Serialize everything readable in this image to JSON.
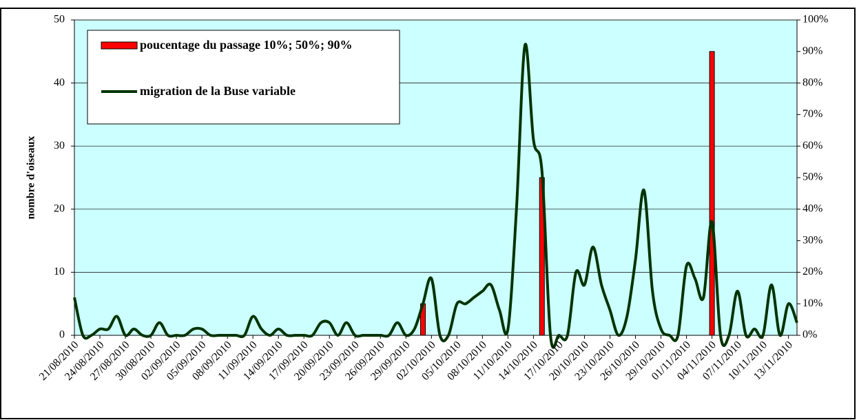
{
  "chart_data": {
    "type": "line-bar",
    "y_label": "nombre d'oiseaux",
    "categories": [
      "21/08/2010",
      null,
      null,
      "24/08/2010",
      null,
      null,
      "27/08/2010",
      null,
      null,
      "30/08/2010",
      null,
      null,
      "02/09/2010",
      null,
      null,
      "05/09/2010",
      null,
      null,
      "08/09/2010",
      null,
      null,
      "11/09/2010",
      null,
      null,
      "14/09/2010",
      null,
      null,
      "17/09/2010",
      null,
      null,
      "20/09/2010",
      null,
      null,
      "23/09/2010",
      null,
      null,
      "26/09/2010",
      null,
      null,
      "29/09/2010",
      null,
      null,
      "02/10/2010",
      null,
      null,
      "05/10/2010",
      null,
      null,
      "08/10/2010",
      null,
      null,
      "11/10/2010",
      null,
      null,
      "14/10/2010",
      null,
      null,
      "17/10/2010",
      null,
      null,
      "20/10/2010",
      null,
      null,
      "23/10/2010",
      null,
      null,
      "26/10/2010",
      null,
      null,
      "29/10/2010",
      null,
      null,
      "01/11/2010",
      null,
      null,
      "04/11/2010",
      null,
      null,
      "07/11/2010",
      null,
      null,
      "10/11/2010",
      null,
      null,
      "13/11/2010",
      null
    ],
    "series": [
      {
        "name": "poucentage du passage 10%; 50%; 90%",
        "kind": "bar",
        "axis": "y2",
        "color": "#ff0000",
        "values": [
          null,
          null,
          null,
          null,
          null,
          null,
          null,
          null,
          null,
          null,
          null,
          null,
          null,
          null,
          null,
          null,
          null,
          null,
          null,
          null,
          null,
          null,
          null,
          null,
          null,
          null,
          null,
          null,
          null,
          null,
          null,
          null,
          null,
          null,
          null,
          null,
          null,
          null,
          null,
          null,
          null,
          10,
          null,
          null,
          null,
          null,
          null,
          null,
          null,
          null,
          null,
          null,
          null,
          null,
          null,
          50,
          null,
          null,
          null,
          null,
          null,
          null,
          null,
          null,
          null,
          null,
          null,
          null,
          null,
          null,
          null,
          null,
          null,
          null,
          null,
          90,
          null,
          null,
          null,
          null,
          null,
          null,
          null,
          null,
          null,
          null
        ]
      },
      {
        "name": "migration de la Buse variable",
        "kind": "line",
        "color": "#003300",
        "values": [
          6,
          0,
          0,
          1,
          1,
          3,
          0,
          1,
          0,
          0,
          2,
          0,
          0,
          0,
          1,
          1,
          0,
          0,
          0,
          0,
          0,
          3,
          1,
          0,
          1,
          0,
          0,
          0,
          0,
          2,
          2,
          0,
          2,
          0,
          0,
          0,
          0,
          0,
          2,
          0,
          1,
          5,
          9,
          0,
          0,
          5,
          5,
          6,
          7,
          8,
          4,
          1,
          20,
          46,
          31,
          26,
          0,
          0,
          0,
          10,
          8,
          14,
          8,
          4,
          0,
          3,
          12,
          23,
          7,
          1,
          0,
          0,
          11,
          9,
          6,
          18,
          0,
          0,
          7,
          0,
          1,
          0,
          8,
          0,
          5,
          2
        ]
      }
    ],
    "ylim": [
      0,
      50
    ],
    "yticks": [
      0,
      10,
      20,
      30,
      40,
      50
    ],
    "y2lim": [
      0,
      100
    ],
    "y2ticks": [
      {
        "value": 0,
        "label": "0%"
      },
      {
        "value": 10,
        "label": "10%"
      },
      {
        "value": 20,
        "label": "20%"
      },
      {
        "value": 30,
        "label": "30%"
      },
      {
        "value": 40,
        "label": "40%"
      },
      {
        "value": 50,
        "label": "50%"
      },
      {
        "value": 60,
        "label": "60%"
      },
      {
        "value": 70,
        "label": "70%"
      },
      {
        "value": 80,
        "label": "80%"
      },
      {
        "value": 90,
        "label": "90%"
      },
      {
        "value": 100,
        "label": "100%"
      }
    ],
    "grid": true,
    "plot_background": "#ccffff"
  }
}
